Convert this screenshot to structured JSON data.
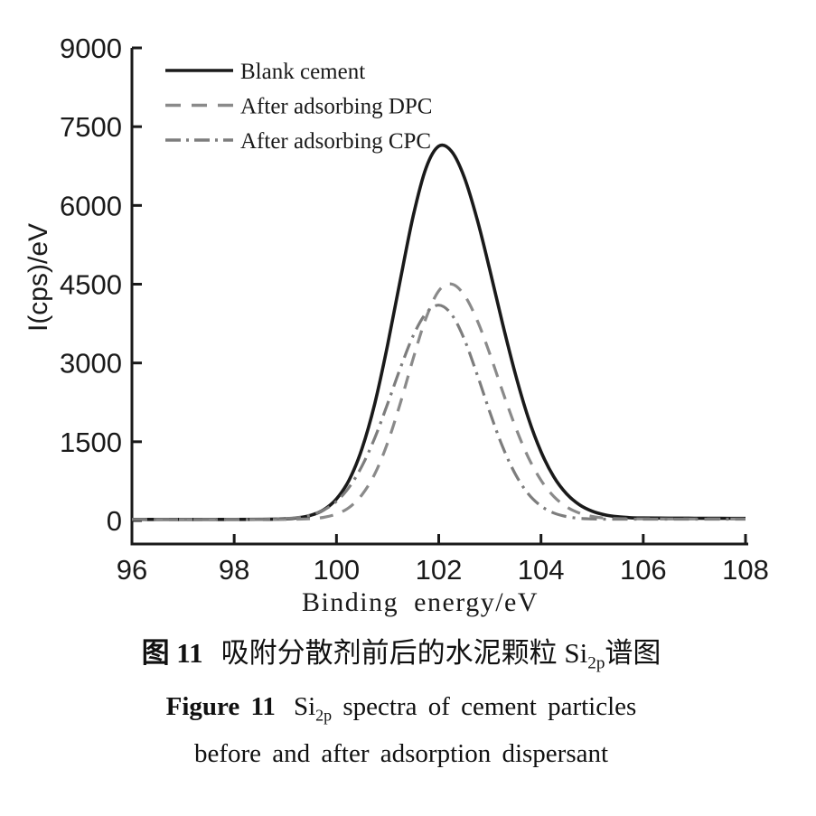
{
  "figure": {
    "caption_zh": {
      "head": "图 11",
      "pre_sub": "吸附分散剂前后的水泥颗粒 Si",
      "sub": "2p",
      "post_sub": "谱图"
    },
    "caption_en": {
      "head": "Figure 11",
      "pre_sub": "Si",
      "sub": "2p",
      "post_sub": " spectra of cement particles",
      "line2": "before and after adsorption dispersant"
    }
  },
  "chart_data": {
    "type": "line",
    "title": "",
    "xlabel": "Binding energy/eV",
    "ylabel": "I(cps)/eV",
    "xlim": [
      96,
      108
    ],
    "ylim": [
      0,
      9000
    ],
    "xticks": [
      "96",
      "98",
      "100",
      "102",
      "104",
      "106",
      "108"
    ],
    "xtick_values": [
      96,
      98,
      100,
      102,
      104,
      106,
      108
    ],
    "yticks": [
      "0",
      "1500",
      "3000",
      "4500",
      "6000",
      "7500",
      "9000"
    ],
    "ytick_values": [
      0,
      1500,
      3000,
      4500,
      6000,
      7500,
      9000
    ],
    "grid": false,
    "legend_position": "top-left",
    "x": [
      96,
      96.5,
      97,
      97.5,
      98,
      98.5,
      99,
      99.25,
      99.5,
      99.75,
      100,
      100.25,
      100.5,
      100.75,
      101,
      101.25,
      101.5,
      101.75,
      102,
      102.25,
      102.5,
      102.75,
      103,
      103.25,
      103.5,
      103.75,
      104,
      104.25,
      104.5,
      104.75,
      105,
      105.25,
      105.5,
      105.75,
      106,
      106.5,
      107,
      107.5,
      108
    ],
    "series": [
      {
        "name": "Blank cement",
        "line_style": "solid",
        "color": "#1a1a1a",
        "peak": {
          "x": 102.1,
          "y": 7150
        },
        "values": [
          20,
          20,
          20,
          20,
          21,
          23,
          31,
          51,
          99,
          203,
          409,
          776,
          1370,
          2231,
          3340,
          4592,
          5796,
          6710,
          7128,
          7032,
          6536,
          5742,
          4768,
          3746,
          2784,
          1960,
          1309,
          833,
          508,
          301,
          177,
          108,
          72,
          54,
          48,
          45,
          43,
          42,
          40
        ]
      },
      {
        "name": "After adsorbing DPC",
        "line_style": "dashed",
        "color": "#8a8a8a",
        "peak": {
          "x": 102.2,
          "y": 4510
        },
        "values": [
          20,
          20,
          20,
          20,
          20,
          20,
          21,
          25,
          35,
          61,
          122,
          250,
          490,
          889,
          1478,
          2238,
          3082,
          3853,
          4372,
          4504,
          4292,
          3817,
          3170,
          2458,
          1781,
          1206,
          766,
          458,
          260,
          142,
          78,
          46,
          35,
          32,
          31,
          30,
          30,
          30,
          30
        ]
      },
      {
        "name": "After adsorbing CPC",
        "line_style": "dashdot",
        "color": "#7d7d7d",
        "peak": {
          "x": 102.0,
          "y": 4100
        },
        "values": [
          20,
          20,
          20,
          20,
          20,
          21,
          36,
          58,
          106,
          199,
          365,
          636,
          1038,
          1575,
          2221,
          2903,
          3517,
          3945,
          4100,
          3927,
          3452,
          2785,
          2062,
          1404,
          880,
          510,
          276,
          143,
          74,
          42,
          30,
          26,
          25,
          25,
          25,
          25,
          25,
          25,
          25
        ]
      }
    ]
  }
}
